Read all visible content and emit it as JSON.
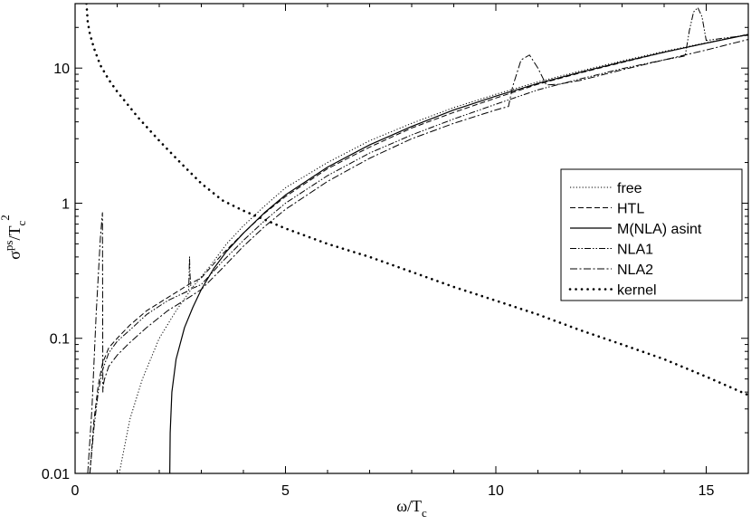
{
  "chart_data": {
    "type": "line",
    "xlabel": {
      "main": "ω/T",
      "sub": "c"
    },
    "ylabel": {
      "main": "σ",
      "sup": "ps",
      "mid": "/T",
      "sub": "c",
      "sup2": "2"
    },
    "xlim": [
      0,
      16
    ],
    "ylim": [
      0.01,
      30
    ],
    "yscale": "log",
    "x_ticks": [
      0,
      5,
      10,
      15
    ],
    "x_tick_labels": [
      "0",
      "5",
      "10",
      "15"
    ],
    "y_ticks": [
      0.01,
      0.1,
      1,
      10
    ],
    "y_tick_labels": [
      "0.01",
      "0.1",
      "1",
      "10"
    ],
    "legend_position": "right",
    "series": [
      {
        "name": "free",
        "style": "dotted",
        "x": [
          1.05,
          1.3,
          1.6,
          2.0,
          2.4,
          2.8,
          3.2,
          3.6,
          4.0,
          4.5,
          5.0,
          6.0,
          7.0,
          8.0,
          9.0,
          10.0,
          11.0,
          12.0,
          13.0,
          14.0,
          15.0,
          16.0
        ],
        "y": [
          0.01,
          0.025,
          0.05,
          0.1,
          0.16,
          0.24,
          0.34,
          0.5,
          0.68,
          0.95,
          1.3,
          2.0,
          2.9,
          3.9,
          5.1,
          6.4,
          7.9,
          9.5,
          11.3,
          13.3,
          15.4,
          17.8
        ]
      },
      {
        "name": "HTL",
        "style": "dashed",
        "x": [
          0.35,
          0.45,
          0.55,
          0.65,
          0.8,
          1.0,
          1.3,
          1.7,
          2.2,
          2.7,
          3.0,
          3.5,
          4.0,
          4.5,
          5.0,
          6.0,
          7.0,
          8.0,
          9.0,
          10.0,
          11.0,
          12.0,
          13.0,
          14.0,
          15.0,
          16.0
        ],
        "y": [
          0.01,
          0.025,
          0.045,
          0.065,
          0.085,
          0.1,
          0.125,
          0.16,
          0.2,
          0.25,
          0.28,
          0.42,
          0.6,
          0.84,
          1.12,
          1.8,
          2.6,
          3.6,
          4.7,
          6.0,
          7.6,
          9.2,
          11.0,
          13.1,
          15.3,
          17.8
        ]
      },
      {
        "name": "M(NLA) asint",
        "style": "solid",
        "x": [
          2.25,
          2.26,
          2.3,
          2.4,
          2.6,
          2.8,
          3.0,
          3.3,
          3.6,
          4.0,
          4.5,
          5.0,
          6.0,
          7.0,
          8.0,
          9.0,
          10.0,
          11.0,
          12.0,
          13.0,
          14.0,
          15.0,
          16.0
        ],
        "y": [
          0.01,
          0.02,
          0.04,
          0.07,
          0.12,
          0.17,
          0.23,
          0.33,
          0.44,
          0.6,
          0.85,
          1.15,
          1.85,
          2.7,
          3.7,
          4.9,
          6.2,
          7.7,
          9.3,
          11.1,
          13.1,
          15.3,
          17.7
        ]
      },
      {
        "name": "NLA1",
        "style": "dashdotdot",
        "x": [
          0.35,
          0.45,
          0.55,
          0.65,
          0.8,
          1.0,
          1.3,
          1.7,
          2.2,
          2.7,
          2.72,
          2.73,
          2.75,
          2.8,
          3.0,
          3.5,
          4.0,
          4.5,
          5.0,
          6.0,
          7.0,
          8.0,
          9.0,
          10.0,
          11.0,
          12.0,
          13.0,
          14.0,
          14.5,
          14.6,
          14.7,
          14.8,
          14.9,
          15.0,
          15.5,
          16.0
        ],
        "y": [
          0.01,
          0.022,
          0.04,
          0.058,
          0.078,
          0.095,
          0.115,
          0.15,
          0.19,
          0.225,
          0.4,
          0.3,
          0.24,
          0.235,
          0.25,
          0.37,
          0.53,
          0.74,
          1.0,
          1.6,
          2.35,
          3.2,
          4.2,
          5.4,
          6.9,
          8.3,
          9.9,
          11.5,
          12.3,
          19,
          26,
          28,
          24,
          16.0,
          16.8,
          17.5
        ]
      },
      {
        "name": "NLA2",
        "style": "dashdot",
        "x": [
          0.3,
          0.4,
          0.5,
          0.6,
          0.65,
          0.66,
          0.67,
          0.7,
          0.8,
          1.0,
          1.3,
          1.7,
          2.2,
          2.7,
          3.0,
          3.5,
          4.0,
          4.5,
          5.0,
          6.0,
          7.0,
          8.0,
          9.0,
          10.0,
          10.3,
          10.4,
          10.6,
          10.8,
          11.0,
          11.2,
          11.5,
          12.0,
          13.0,
          14.0,
          15.0,
          16.0
        ],
        "y": [
          0.01,
          0.03,
          0.15,
          0.55,
          0.85,
          0.04,
          0.045,
          0.05,
          0.062,
          0.075,
          0.093,
          0.12,
          0.16,
          0.2,
          0.23,
          0.33,
          0.48,
          0.67,
          0.9,
          1.45,
          2.15,
          3.0,
          3.9,
          4.9,
          5.2,
          7.3,
          11.5,
          12.5,
          10.0,
          7.5,
          7.6,
          8.1,
          9.7,
          11.5,
          13.6,
          16.3
        ]
      },
      {
        "name": "kernel",
        "style": "heavy-dotted",
        "x": [
          0.27,
          0.3,
          0.35,
          0.45,
          0.6,
          0.8,
          1.0,
          1.5,
          2.0,
          2.5,
          3.0,
          3.5,
          4.0,
          5.0,
          6.0,
          7.0,
          8.0,
          9.0,
          10.0,
          11.0,
          12.0,
          13.0,
          14.0,
          15.0,
          16.0
        ],
        "y": [
          30,
          22,
          18,
          14,
          10.5,
          8.2,
          6.7,
          4.3,
          2.9,
          2.0,
          1.4,
          1.05,
          0.88,
          0.65,
          0.5,
          0.4,
          0.31,
          0.24,
          0.19,
          0.15,
          0.115,
          0.09,
          0.07,
          0.052,
          0.038
        ]
      }
    ]
  }
}
